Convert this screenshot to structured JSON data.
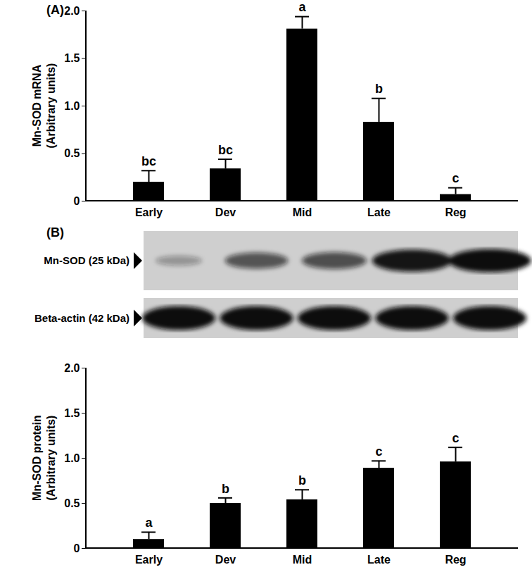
{
  "chart_data": [
    {
      "type": "bar",
      "panel": "(A)",
      "ylabel": "Mn-SOD mRNA\n(Arbitrary units)",
      "categories": [
        "Early",
        "Dev",
        "Mid",
        "Late",
        "Reg"
      ],
      "values": [
        0.2,
        0.34,
        1.81,
        0.83,
        0.07
      ],
      "errors": [
        0.12,
        0.1,
        0.13,
        0.25,
        0.07
      ],
      "annotations": [
        "bc",
        "bc",
        "a",
        "b",
        "c"
      ],
      "color": "#000000",
      "ylim": [
        0,
        2
      ],
      "yticks": [
        0,
        0.5,
        {
          "value": 1,
          "label": "1.0"
        },
        1.5,
        {
          "value": 2,
          "label": "2.0"
        }
      ]
    },
    {
      "type": "bar",
      "panel": "(B)",
      "ylabel": "Mn-SOD protein\n(Arbitrary units)",
      "blot_labels": [
        "Mn-SOD (25 kDa)",
        "Beta-actin (42 kDa)"
      ],
      "categories": [
        "Early",
        "Dev",
        "Mid",
        "Late",
        "Reg"
      ],
      "values": [
        0.1,
        0.5,
        0.54,
        0.89,
        0.96
      ],
      "errors": [
        0.08,
        0.06,
        0.11,
        0.08,
        0.16
      ],
      "annotations": [
        "a",
        "b",
        "b",
        "c",
        "c"
      ],
      "color": "#000000",
      "ylim": [
        0,
        2
      ],
      "yticks": [
        0,
        0.5,
        {
          "value": 1,
          "label": "1.0"
        },
        1.5,
        {
          "value": 2,
          "label": "2.0"
        }
      ]
    }
  ]
}
